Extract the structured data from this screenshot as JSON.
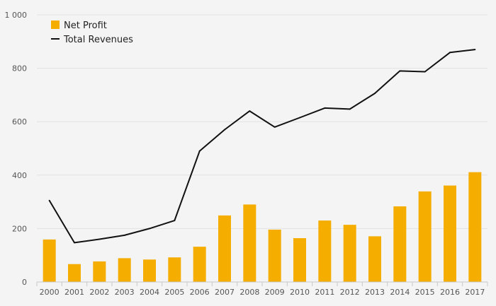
{
  "chart_data": {
    "type": "bar",
    "categories": [
      "2000",
      "2001",
      "2002",
      "2003",
      "2004",
      "2005",
      "2006",
      "2007",
      "2008",
      "2009",
      "2010",
      "2011",
      "2012",
      "2013",
      "2014",
      "2015",
      "2016",
      "2017"
    ],
    "series": [
      {
        "name": "Net Profit",
        "type": "bar",
        "color": "#f5ad00",
        "values": [
          159,
          67,
          77,
          89,
          84,
          92,
          132,
          249,
          290,
          196,
          164,
          230,
          214,
          171,
          283,
          339,
          361,
          411
        ]
      },
      {
        "name": "Total Revenues",
        "type": "line",
        "color": "#111111",
        "values": [
          305,
          147,
          160,
          175,
          200,
          230,
          490,
          570,
          640,
          580,
          615,
          651,
          647,
          706,
          790,
          787,
          859,
          870
        ]
      }
    ],
    "yticks": [
      0,
      200,
      400,
      600,
      800,
      1000
    ],
    "ytick_labels": [
      "0",
      "200",
      "400",
      "600",
      "800",
      "1 000"
    ],
    "ylim": [
      0,
      1000
    ],
    "title": "",
    "xlabel": "",
    "ylabel": "",
    "grid": true,
    "legend_position": "top-left"
  }
}
